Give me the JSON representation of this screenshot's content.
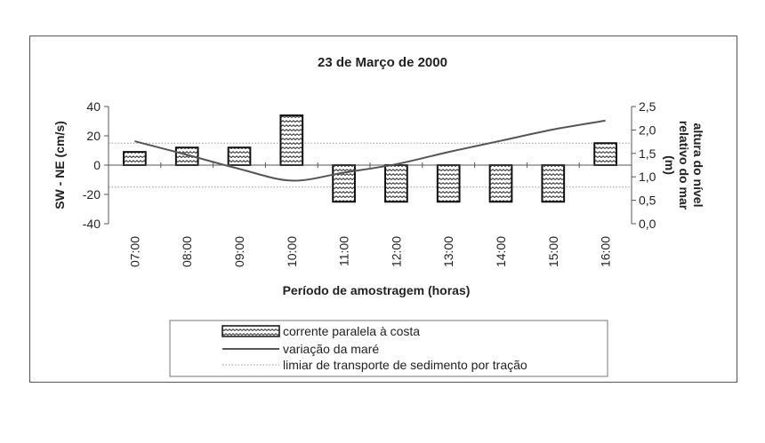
{
  "chart_data": {
    "type": "bar",
    "title": "23 de Março de 2000",
    "xlabel": "Período de amostragem (horas)",
    "ylabel_left": "SW - NE (cm/s)",
    "ylabel_right_lines": [
      "altura do nível",
      "relativo do mar",
      "(m)"
    ],
    "categories": [
      "07:00",
      "08:00",
      "09:00",
      "10:00",
      "11:00",
      "12:00",
      "13:00",
      "14:00",
      "15:00",
      "16:00"
    ],
    "ylim_left": [
      -40,
      40
    ],
    "yticks_left": [
      "40",
      "20",
      "0",
      "-20",
      "-40"
    ],
    "ylim_right": [
      0,
      2.5
    ],
    "yticks_right": [
      "2,5",
      "2,0",
      "1,5",
      "1,0",
      "0,5",
      "0,0"
    ],
    "threshold_values": [
      15,
      -15
    ],
    "series": [
      {
        "name": "corrente paralela à costa",
        "kind": "bar",
        "axis": "left",
        "values": [
          9,
          12,
          12,
          34,
          -25,
          -25,
          -25,
          -25,
          -25,
          15
        ]
      },
      {
        "name": "variação da maré",
        "kind": "line",
        "axis": "right",
        "values": [
          1.76,
          1.47,
          1.17,
          0.92,
          1.09,
          1.27,
          1.53,
          1.77,
          2.01,
          2.2
        ]
      },
      {
        "name": "limiar de transporte de sedimento por tração",
        "kind": "dotted-line",
        "axis": "left"
      }
    ],
    "legend": [
      "corrente paralela à costa",
      "variação da maré",
      "limiar de transporte de sedimento por tração"
    ],
    "legend_position": "bottom"
  },
  "colors": {
    "line": "#555555",
    "bar_stroke": "#111111",
    "axis": "#555555",
    "threshold": "#999999"
  }
}
